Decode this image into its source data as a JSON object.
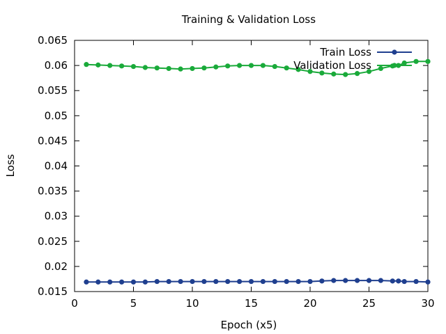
{
  "chart_data": {
    "type": "line",
    "title": "Training & Validation Loss",
    "xlabel": "Epoch (x5)",
    "ylabel": "Loss",
    "xlim": [
      0,
      30
    ],
    "ylim": [
      0.015,
      0.065
    ],
    "x_ticks": [
      0,
      5,
      10,
      15,
      20,
      25,
      30
    ],
    "x_tick_labels": [
      "0",
      "5",
      "10",
      "15",
      "20",
      "25",
      "30"
    ],
    "y_ticks": [
      0.015,
      0.02,
      0.025,
      0.03,
      0.035,
      0.04,
      0.045,
      0.05,
      0.055,
      0.06,
      0.065
    ],
    "y_tick_labels": [
      "0.015",
      "0.02",
      "0.025",
      "0.03",
      "0.035",
      "0.04",
      "0.045",
      "0.05",
      "0.055",
      "0.06",
      "0.065"
    ],
    "grid": false,
    "legend_position": "top-right",
    "x": [
      1,
      2,
      3,
      4,
      5,
      6,
      7,
      8,
      9,
      10,
      11,
      12,
      13,
      14,
      15,
      16,
      17,
      18,
      19,
      20,
      21,
      22,
      23,
      24,
      25,
      26,
      27,
      27.5,
      28,
      29,
      30
    ],
    "series": [
      {
        "name": "Train Loss",
        "color": "#1f3f8f",
        "values": [
          0.0169,
          0.0169,
          0.0169,
          0.0169,
          0.0169,
          0.0169,
          0.017,
          0.017,
          0.017,
          0.017,
          0.017,
          0.017,
          0.017,
          0.017,
          0.017,
          0.017,
          0.017,
          0.017,
          0.017,
          0.017,
          0.0171,
          0.0172,
          0.0172,
          0.0172,
          0.0172,
          0.0172,
          0.0171,
          0.0171,
          0.017,
          0.017,
          0.0169
        ]
      },
      {
        "name": "Validation Loss",
        "color": "#1aaa3a",
        "values": [
          0.0602,
          0.0601,
          0.06,
          0.0599,
          0.0598,
          0.0596,
          0.0595,
          0.0594,
          0.0593,
          0.0594,
          0.0595,
          0.0597,
          0.0599,
          0.06,
          0.06,
          0.06,
          0.0598,
          0.0595,
          0.0592,
          0.0588,
          0.0585,
          0.0583,
          0.0582,
          0.0584,
          0.0588,
          0.0594,
          0.0599,
          0.06,
          0.0605,
          0.0608,
          0.0608
        ]
      }
    ]
  }
}
